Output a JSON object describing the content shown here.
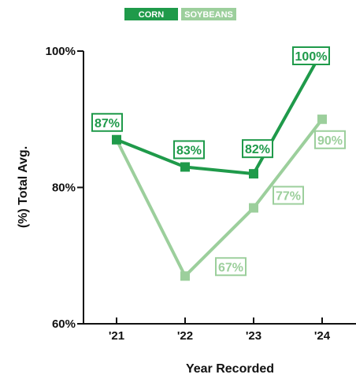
{
  "colors": {
    "corn": "#1f9a4a",
    "soybeans": "#9ccf9c",
    "axis": "#111111",
    "background": "#ffffff"
  },
  "chart_data": {
    "type": "line",
    "title": "",
    "xlabel": "Year Recorded",
    "ylabel": "(%) Total Avg.",
    "categories": [
      "'21",
      "'22",
      "'23",
      "'24"
    ],
    "ylim": [
      60,
      100
    ],
    "yticks": [
      {
        "value": 60,
        "label": "60%"
      },
      {
        "value": 80,
        "label": "80%"
      },
      {
        "value": 100,
        "label": "100%"
      }
    ],
    "grid": false,
    "legend_position": "top-center",
    "series": [
      {
        "name": "CORN",
        "color": "#1f9a4a",
        "values": [
          87,
          83,
          82,
          100
        ],
        "labels": [
          "87%",
          "83%",
          "82%",
          "100%"
        ]
      },
      {
        "name": "SOYBEANS",
        "color": "#9ccf9c",
        "values": [
          87,
          67,
          77,
          90
        ],
        "labels": [
          "",
          "67%",
          "77%",
          "90%"
        ]
      }
    ]
  }
}
